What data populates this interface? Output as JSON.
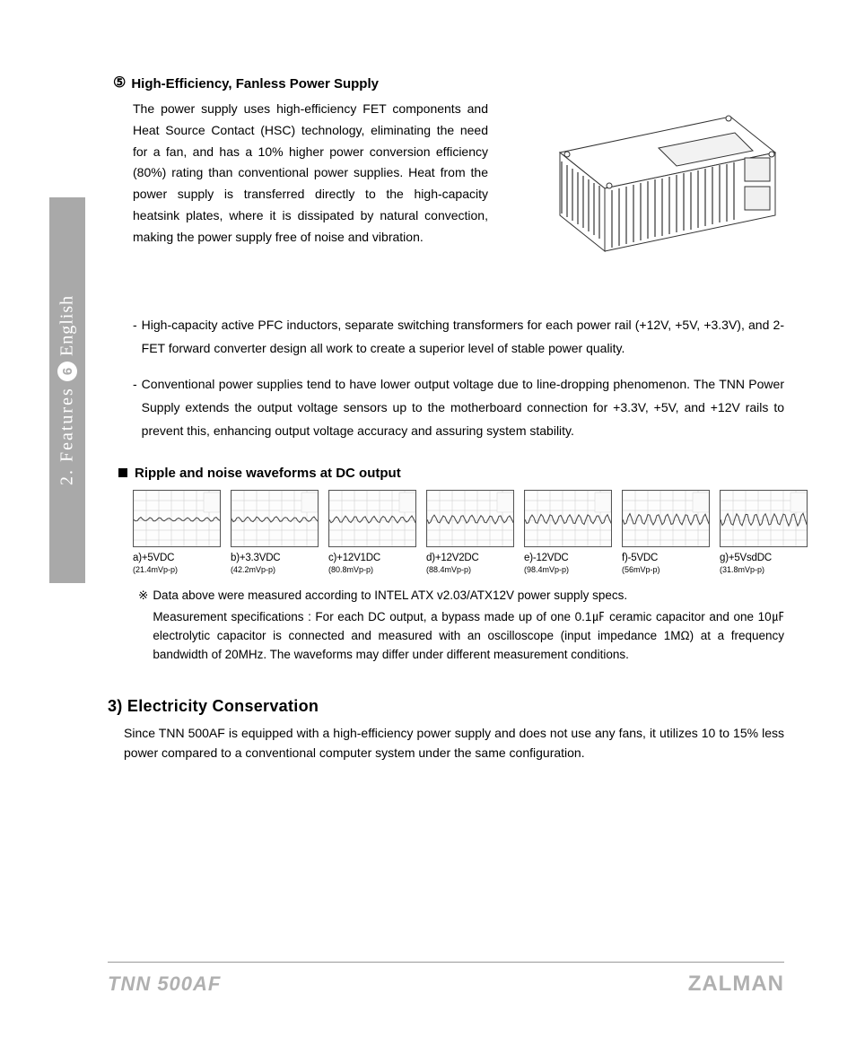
{
  "sidebar": {
    "prefix": "2. Features",
    "page_num": "6",
    "lang": "English"
  },
  "section5": {
    "marker": "⑤",
    "title": "High-Efficiency, Fanless Power Supply",
    "intro": "The power supply uses high-efficiency FET components and Heat Source Contact (HSC) technology, eliminating the need for a fan, and has a 10% higher power conversion efficiency (80%) rating than conventional power supplies. Heat from the power supply is transferred directly to the high-capacity heatsink plates, where it is dissipated by natural convection, making the power supply free of noise and vibration.",
    "bullets": [
      "High-capacity active PFC inductors, separate switching transformers for each power rail (+12V, +5V, +3.3V), and 2-FET forward converter design all work to create a superior level of stable power quality.",
      "Conventional power supplies tend to have lower output voltage due to line-dropping phenomenon. The TNN Power Supply extends the output voltage sensors up to the motherboard connection for +3.3V, +5V, and +12V rails to prevent this, enhancing output voltage accuracy and assuring system stability."
    ]
  },
  "ripple": {
    "title": "Ripple and noise waveforms at DC output",
    "items": [
      {
        "label": "a)+5VDC",
        "sub": "(21.4mVp-p)"
      },
      {
        "label": "b)+3.3VDC",
        "sub": "(42.2mVp-p)"
      },
      {
        "label": "c)+12V1DC",
        "sub": "(80.8mVp-p)"
      },
      {
        "label": "d)+12V2DC",
        "sub": "(88.4mVp-p)"
      },
      {
        "label": "e)-12VDC",
        "sub": "(98.4mVp-p)"
      },
      {
        "label": "f)-5VDC",
        "sub": "(56mVp-p)"
      },
      {
        "label": "g)+5VsdDC",
        "sub": "(31.8mVp-p)"
      }
    ],
    "note1": "Data above were measured according to INTEL ATX v2.03/ATX12V power supply specs.",
    "note2": "Measurement specifications : For each DC output, a bypass made up of one 0.1㎌ ceramic capacitor and one 10㎌ electrolytic capacitor is connected and measured with an oscilloscope (input impedance 1MΩ) at a frequency bandwidth of 20MHz. The waveforms may differ under different measurement conditions."
  },
  "section3": {
    "title": "3) Electricity Conservation",
    "body": "Since TNN 500AF is equipped with a high-efficiency power supply and does not use any fans, it utilizes 10 to 15% less power compared to a conventional computer system under the same configuration."
  },
  "footer": {
    "model": "TNN 500AF",
    "brand": "ZALMAN"
  },
  "waveform_style": {
    "border_color": "#555555",
    "bg": "#fdfdfd",
    "trace_color": "#404040",
    "grid_color": "#c8c8c8"
  }
}
